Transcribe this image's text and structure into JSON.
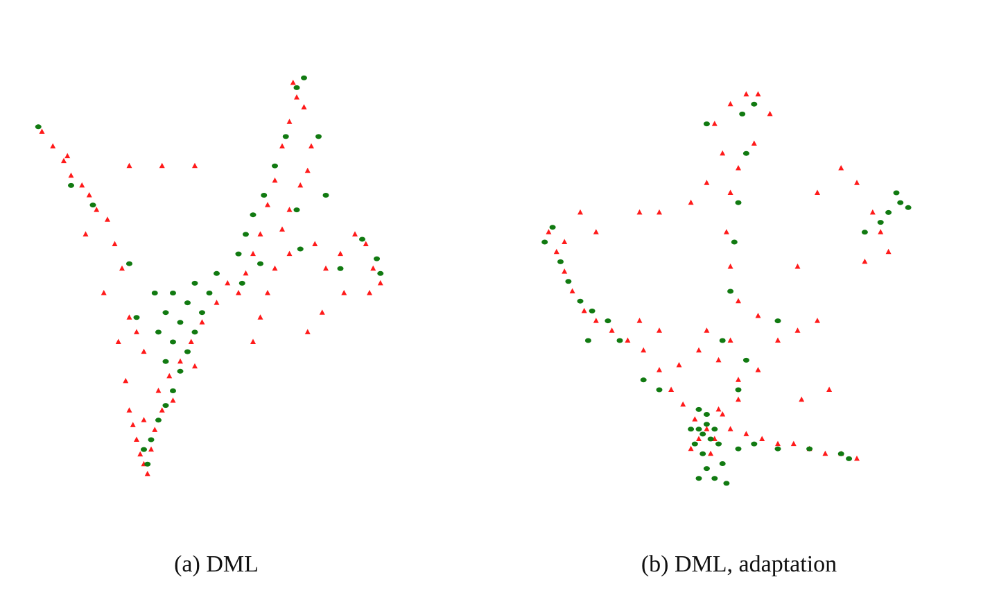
{
  "chart_data": [
    {
      "type": "scatter",
      "caption": "(a) DML",
      "xlim": [
        0,
        100
      ],
      "ylim": [
        0,
        100
      ],
      "series": [
        {
          "color": "#ff1a1a",
          "marker": "triangle",
          "x": [
            30,
            31,
            29,
            32,
            28,
            33,
            30,
            35,
            27,
            34,
            37,
            40,
            43,
            46,
            50,
            53,
            44,
            38,
            26,
            25,
            2,
            5,
            8,
            10,
            13,
            15,
            17,
            20,
            14,
            22,
            24,
            19,
            26,
            23,
            28,
            30,
            9,
            26,
            35,
            44,
            71,
            72,
            70,
            68,
            66,
            64,
            62,
            60,
            58,
            56,
            74,
            76,
            75,
            73,
            70,
            68,
            77,
            80,
            84,
            88,
            91,
            93,
            95,
            92,
            85,
            79,
            75,
            66,
            64,
            62,
            70,
            60
          ],
          "values": [
            15,
            13,
            17,
            18,
            20,
            22,
            24,
            26,
            23,
            30,
            33,
            36,
            40,
            44,
            48,
            52,
            35,
            28,
            26,
            32,
            83,
            80,
            77,
            74,
            72,
            70,
            67,
            65,
            62,
            60,
            55,
            50,
            45,
            40,
            42,
            38,
            78,
            76,
            76,
            76,
            93,
            90,
            85,
            80,
            73,
            68,
            62,
            58,
            54,
            50,
            88,
            80,
            75,
            72,
            67,
            63,
            60,
            55,
            58,
            62,
            60,
            55,
            52,
            50,
            50,
            46,
            42,
            55,
            50,
            45,
            58,
            40
          ]
        },
        {
          "color": "#117a11",
          "marker": "circle",
          "x": [
            31,
            30,
            32,
            34,
            36,
            38,
            40,
            36,
            42,
            38,
            34,
            44,
            40,
            46,
            36,
            42,
            48,
            38,
            44,
            50,
            28,
            56,
            58,
            60,
            63,
            66,
            69,
            72,
            74,
            78,
            80,
            1,
            10,
            16,
            33,
            26,
            57,
            62,
            94,
            95,
            90,
            84,
            73,
            72
          ],
          "values": [
            15,
            18,
            20,
            24,
            27,
            30,
            34,
            36,
            38,
            40,
            42,
            42,
            44,
            46,
            46,
            48,
            50,
            50,
            52,
            54,
            45,
            58,
            62,
            66,
            70,
            76,
            82,
            92,
            94,
            82,
            70,
            84,
            72,
            68,
            50,
            56,
            52,
            56,
            57,
            54,
            61,
            55,
            59,
            67
          ]
        }
      ]
    },
    {
      "type": "scatter",
      "caption": "(b) DML, adaptation",
      "xlim": [
        0,
        100
      ],
      "ylim": [
        0,
        100
      ],
      "series": [
        {
          "color": "#ff1a1a",
          "marker": "triangle",
          "x": [
            2,
            4,
            6,
            8,
            11,
            14,
            18,
            22,
            26,
            30,
            33,
            36,
            39,
            42,
            44,
            46,
            48,
            52,
            56,
            60,
            64,
            68,
            72,
            76,
            80,
            40,
            38,
            43,
            45,
            50,
            35,
            40,
            45,
            50,
            55,
            48,
            42,
            30,
            25,
            60,
            65,
            70,
            55,
            50,
            48,
            47,
            48,
            46,
            44,
            48,
            52,
            55,
            58,
            54,
            50,
            42,
            38,
            30,
            25,
            14,
            10,
            6,
            76,
            80,
            84,
            86,
            88,
            82,
            70,
            65,
            73,
            66
          ],
          "values": [
            62,
            58,
            54,
            50,
            46,
            44,
            42,
            40,
            38,
            34,
            30,
            27,
            24,
            22,
            20,
            25,
            22,
            21,
            20,
            19,
            19,
            18,
            17,
            17,
            16,
            20,
            18,
            17,
            26,
            28,
            35,
            38,
            36,
            32,
            34,
            40,
            42,
            42,
            44,
            40,
            42,
            44,
            45,
            48,
            55,
            62,
            70,
            78,
            84,
            88,
            90,
            90,
            86,
            80,
            75,
            72,
            68,
            66,
            66,
            62,
            66,
            60,
            75,
            72,
            66,
            62,
            58,
            56,
            70,
            55,
            30,
            28
          ]
        },
        {
          "color": "#117a11",
          "marker": "circle",
          "x": [
            1,
            3,
            5,
            7,
            10,
            13,
            17,
            20,
            12,
            40,
            41,
            42,
            43,
            39,
            41,
            44,
            42,
            40,
            38,
            45,
            46,
            42,
            44,
            47,
            40,
            50,
            54,
            60,
            68,
            76,
            78,
            50,
            52,
            46,
            48,
            49,
            50,
            52,
            51,
            54,
            42,
            88,
            91,
            93,
            90,
            86,
            82,
            26,
            30,
            60
          ],
          "values": [
            60,
            63,
            56,
            52,
            48,
            46,
            44,
            40,
            40,
            22,
            21,
            23,
            20,
            19,
            17,
            22,
            25,
            26,
            22,
            19,
            15,
            14,
            12,
            11,
            12,
            18,
            19,
            18,
            18,
            17,
            16,
            30,
            36,
            40,
            50,
            60,
            68,
            78,
            86,
            88,
            84,
            66,
            68,
            67,
            70,
            64,
            62,
            32,
            30,
            44
          ]
        }
      ]
    }
  ]
}
